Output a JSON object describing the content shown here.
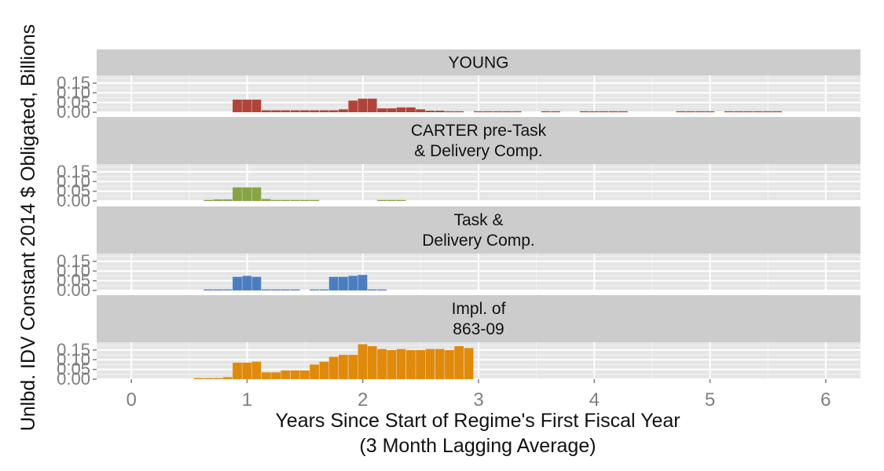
{
  "chart_data": {
    "type": "bar",
    "subtype": "faceted-histogram",
    "ylabel": "Unlbd. IDV Constant 2014 $ Obligated, Billions",
    "xlabel_lines": [
      "Years Since Start of Regime's First Fiscal Year",
      "(3 Month Lagging Average)"
    ],
    "xlim": [
      -0.3,
      6.3
    ],
    "x_ticks": [
      0,
      1,
      2,
      3,
      4,
      5,
      6
    ],
    "x_tick_labels": [
      "0",
      "1",
      "2",
      "3",
      "4",
      "5",
      "6"
    ],
    "ylim": [
      0,
      0.19
    ],
    "y_ticks": [
      0,
      0.05,
      0.1,
      0.15
    ],
    "y_tick_labels": [
      "0.00",
      "0.05",
      "0.10",
      "0.15"
    ],
    "grid": true,
    "bin_width": 0.0833,
    "panels": [
      {
        "title_lines": [
          "YOUNG"
        ],
        "color": "#b0443a",
        "bars": [
          {
            "x": 0.917,
            "y": 0.065
          },
          {
            "x": 1.0,
            "y": 0.065
          },
          {
            "x": 1.083,
            "y": 0.065
          },
          {
            "x": 1.167,
            "y": 0.01
          },
          {
            "x": 1.25,
            "y": 0.01
          },
          {
            "x": 1.333,
            "y": 0.01
          },
          {
            "x": 1.417,
            "y": 0.01
          },
          {
            "x": 1.5,
            "y": 0.01
          },
          {
            "x": 1.583,
            "y": 0.01
          },
          {
            "x": 1.667,
            "y": 0.01
          },
          {
            "x": 1.75,
            "y": 0.01
          },
          {
            "x": 1.833,
            "y": 0.015
          },
          {
            "x": 1.917,
            "y": 0.06
          },
          {
            "x": 2.0,
            "y": 0.07
          },
          {
            "x": 2.083,
            "y": 0.07
          },
          {
            "x": 2.167,
            "y": 0.02
          },
          {
            "x": 2.25,
            "y": 0.02
          },
          {
            "x": 2.333,
            "y": 0.025
          },
          {
            "x": 2.417,
            "y": 0.025
          },
          {
            "x": 2.5,
            "y": 0.015
          },
          {
            "x": 2.583,
            "y": 0.008
          },
          {
            "x": 2.667,
            "y": 0.008
          },
          {
            "x": 2.75,
            "y": 0.005
          },
          {
            "x": 2.833,
            "y": 0.005
          },
          {
            "x": 3.0,
            "y": 0.005
          },
          {
            "x": 3.083,
            "y": 0.005
          },
          {
            "x": 3.167,
            "y": 0.005
          },
          {
            "x": 3.25,
            "y": 0.005
          },
          {
            "x": 3.333,
            "y": 0.005
          },
          {
            "x": 3.583,
            "y": 0.005
          },
          {
            "x": 3.667,
            "y": 0.005
          },
          {
            "x": 3.917,
            "y": 0.005
          },
          {
            "x": 4.0,
            "y": 0.005
          },
          {
            "x": 4.083,
            "y": 0.005
          },
          {
            "x": 4.167,
            "y": 0.005
          },
          {
            "x": 4.25,
            "y": 0.005
          },
          {
            "x": 4.75,
            "y": 0.005
          },
          {
            "x": 4.833,
            "y": 0.005
          },
          {
            "x": 4.917,
            "y": 0.005
          },
          {
            "x": 5.0,
            "y": 0.005
          },
          {
            "x": 5.167,
            "y": 0.005
          },
          {
            "x": 5.25,
            "y": 0.005
          },
          {
            "x": 5.333,
            "y": 0.005
          },
          {
            "x": 5.417,
            "y": 0.005
          },
          {
            "x": 5.5,
            "y": 0.005
          },
          {
            "x": 5.583,
            "y": 0.005
          }
        ]
      },
      {
        "title_lines": [
          "CARTER pre-Task",
          "& Delivery Comp."
        ],
        "color": "#86a443",
        "bars": [
          {
            "x": 0.667,
            "y": 0.005
          },
          {
            "x": 0.75,
            "y": 0.008
          },
          {
            "x": 0.833,
            "y": 0.008
          },
          {
            "x": 0.917,
            "y": 0.07
          },
          {
            "x": 1.0,
            "y": 0.07
          },
          {
            "x": 1.083,
            "y": 0.07
          },
          {
            "x": 1.167,
            "y": 0.01
          },
          {
            "x": 1.25,
            "y": 0.005
          },
          {
            "x": 1.333,
            "y": 0.005
          },
          {
            "x": 1.417,
            "y": 0.005
          },
          {
            "x": 1.5,
            "y": 0.005
          },
          {
            "x": 1.583,
            "y": 0.005
          },
          {
            "x": 2.167,
            "y": 0.005
          },
          {
            "x": 2.25,
            "y": 0.005
          },
          {
            "x": 2.333,
            "y": 0.005
          }
        ]
      },
      {
        "title_lines": [
          "Task &",
          "Delivery Comp."
        ],
        "color": "#4b7ec0",
        "bars": [
          {
            "x": 0.667,
            "y": 0.005
          },
          {
            "x": 0.75,
            "y": 0.005
          },
          {
            "x": 0.833,
            "y": 0.005
          },
          {
            "x": 0.917,
            "y": 0.07
          },
          {
            "x": 1.0,
            "y": 0.075
          },
          {
            "x": 1.083,
            "y": 0.07
          },
          {
            "x": 1.167,
            "y": 0.005
          },
          {
            "x": 1.25,
            "y": 0.005
          },
          {
            "x": 1.333,
            "y": 0.005
          },
          {
            "x": 1.417,
            "y": 0.005
          },
          {
            "x": 1.583,
            "y": 0.005
          },
          {
            "x": 1.667,
            "y": 0.005
          },
          {
            "x": 1.75,
            "y": 0.07
          },
          {
            "x": 1.833,
            "y": 0.07
          },
          {
            "x": 1.917,
            "y": 0.075
          },
          {
            "x": 2.0,
            "y": 0.08
          },
          {
            "x": 2.083,
            "y": 0.005
          },
          {
            "x": 2.167,
            "y": 0.005
          }
        ]
      },
      {
        "title_lines": [
          "Impl. of",
          "863-09"
        ],
        "color": "#e08a0b",
        "bars": [
          {
            "x": 0.583,
            "y": 0.005
          },
          {
            "x": 0.667,
            "y": 0.005
          },
          {
            "x": 0.75,
            "y": 0.005
          },
          {
            "x": 0.833,
            "y": 0.01
          },
          {
            "x": 0.917,
            "y": 0.085
          },
          {
            "x": 1.0,
            "y": 0.085
          },
          {
            "x": 1.083,
            "y": 0.09
          },
          {
            "x": 1.167,
            "y": 0.035
          },
          {
            "x": 1.25,
            "y": 0.035
          },
          {
            "x": 1.333,
            "y": 0.045
          },
          {
            "x": 1.417,
            "y": 0.045
          },
          {
            "x": 1.5,
            "y": 0.045
          },
          {
            "x": 1.583,
            "y": 0.075
          },
          {
            "x": 1.667,
            "y": 0.09
          },
          {
            "x": 1.75,
            "y": 0.115
          },
          {
            "x": 1.833,
            "y": 0.125
          },
          {
            "x": 1.917,
            "y": 0.125
          },
          {
            "x": 2.0,
            "y": 0.18
          },
          {
            "x": 2.083,
            "y": 0.17
          },
          {
            "x": 2.167,
            "y": 0.155
          },
          {
            "x": 2.25,
            "y": 0.15
          },
          {
            "x": 2.333,
            "y": 0.155
          },
          {
            "x": 2.417,
            "y": 0.15
          },
          {
            "x": 2.5,
            "y": 0.15
          },
          {
            "x": 2.583,
            "y": 0.155
          },
          {
            "x": 2.667,
            "y": 0.155
          },
          {
            "x": 2.75,
            "y": 0.15
          },
          {
            "x": 2.833,
            "y": 0.17
          },
          {
            "x": 2.917,
            "y": 0.16
          }
        ]
      }
    ]
  }
}
